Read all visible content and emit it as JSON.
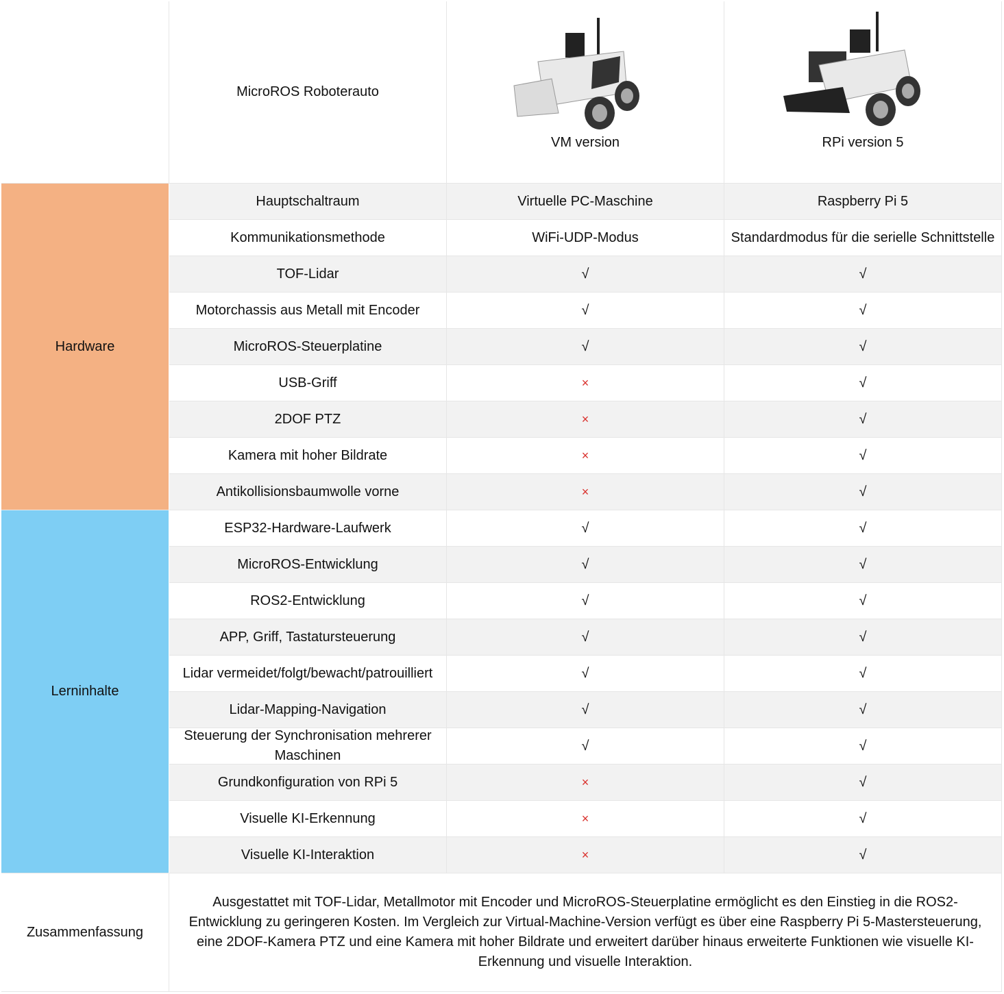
{
  "header": {
    "title": "MicroROS Roboterauto",
    "columns": [
      "VM version",
      "RPi version 5"
    ]
  },
  "groups": [
    {
      "label": "Hardware",
      "rows": [
        [
          "Hauptschaltraum",
          "Virtuelle PC-Maschine",
          "Raspberry Pi 5"
        ],
        [
          "Kommunikationsmethode",
          "WiFi-UDP-Modus",
          "Standardmodus für die serielle Schnittstelle"
        ],
        [
          "TOF-Lidar",
          "√",
          "√"
        ],
        [
          "Motorchassis aus Metall mit Encoder",
          "√",
          "√"
        ],
        [
          "MicroROS-Steuerplatine",
          "√",
          "√"
        ],
        [
          "USB-Griff",
          "×",
          "√"
        ],
        [
          "2DOF PTZ",
          "×",
          "√"
        ],
        [
          "Kamera mit hoher Bildrate",
          "×",
          "√"
        ],
        [
          "Antikollisionsbaumwolle vorne",
          "×",
          "√"
        ]
      ]
    },
    {
      "label": "Lerninhalte",
      "rows": [
        [
          "ESP32-Hardware-Laufwerk",
          "√",
          "√"
        ],
        [
          "MicroROS-Entwicklung",
          "√",
          "√"
        ],
        [
          "ROS2-Entwicklung",
          "√",
          "√"
        ],
        [
          "APP, Griff, Tastatursteuerung",
          "√",
          "√"
        ],
        [
          "Lidar vermeidet/folgt/bewacht/patrouilliert",
          "√",
          "√"
        ],
        [
          "Lidar-Mapping-Navigation",
          "√",
          "√"
        ],
        [
          "Steuerung der Synchronisation mehrerer Maschinen",
          "√",
          "√"
        ],
        [
          "Grundkonfiguration von RPi 5",
          "×",
          "√"
        ],
        [
          "Visuelle KI-Erkennung",
          "×",
          "√"
        ],
        [
          "Visuelle KI-Interaktion",
          "×",
          "√"
        ]
      ]
    }
  ],
  "summary": {
    "label": "Zusammenfassung",
    "text": "Ausgestattet mit TOF-Lidar, Metallmotor mit Encoder und MicroROS-Steuerplatine ermöglicht es den Einstieg in die ROS2-Entwicklung zu geringeren Kosten. Im Vergleich zur Virtual-Machine-Version verfügt es über eine Raspberry Pi 5-Mastersteuerung, eine 2DOF-Kamera PTZ und eine Kamera mit hoher Bildrate und erweitert darüber hinaus erweiterte Funktionen wie visuelle KI-Erkennung und visuelle Interaktion."
  }
}
